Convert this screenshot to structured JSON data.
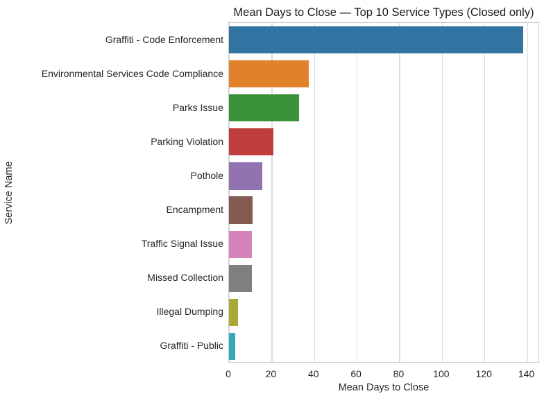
{
  "chart_data": {
    "type": "bar",
    "orientation": "horizontal",
    "title": "Mean Days to Close — Top 10 Service Types (Closed only)",
    "xlabel": "Mean Days to Close",
    "ylabel": "Service Name",
    "categories": [
      "Graffiti - Code Enforcement",
      "Environmental Services Code Compliance",
      "Parks Issue",
      "Parking Violation",
      "Pothole",
      "Encampment",
      "Traffic Signal Issue",
      "Missed Collection",
      "Illegal Dumping",
      "Graffiti - Public"
    ],
    "values": [
      138.2,
      37.5,
      33.0,
      20.9,
      15.7,
      11.2,
      10.9,
      10.7,
      4.1,
      2.8
    ],
    "bar_colors": [
      "#3274a1",
      "#e1812c",
      "#3a923a",
      "#c03d3e",
      "#9372b2",
      "#845b53",
      "#d683bc",
      "#7f7f7f",
      "#a9aa35",
      "#36a8ba"
    ],
    "xticks": [
      0,
      20,
      40,
      60,
      80,
      100,
      120,
      140
    ],
    "xlim": [
      0,
      146
    ],
    "grid": "vertical",
    "grid_color": "#dcdcdc",
    "spine_color": "#cccccc",
    "text_color": "#262626",
    "legend": "none"
  }
}
